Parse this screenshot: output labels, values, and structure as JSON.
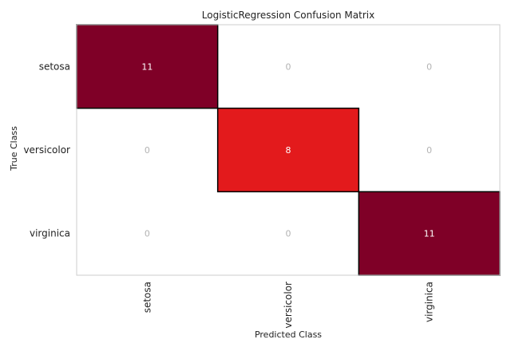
{
  "chart_data": {
    "type": "heatmap",
    "title": "LogisticRegression Confusion Matrix",
    "xlabel": "Predicted Class",
    "ylabel": "True Class",
    "x_categories": [
      "setosa",
      "versicolor",
      "virginica"
    ],
    "y_categories": [
      "setosa",
      "versicolor",
      "virginica"
    ],
    "values": [
      [
        11,
        0,
        0
      ],
      [
        0,
        8,
        0
      ],
      [
        0,
        0,
        11
      ]
    ],
    "colors": {
      "high": "#7f0027",
      "mid": "#e31a1c",
      "zero": "#ffffff",
      "text_on_dark": "#ffffff",
      "text_on_zero": "#b3b3b3",
      "frame": "#cccccc",
      "cell_border": "#000000"
    }
  }
}
